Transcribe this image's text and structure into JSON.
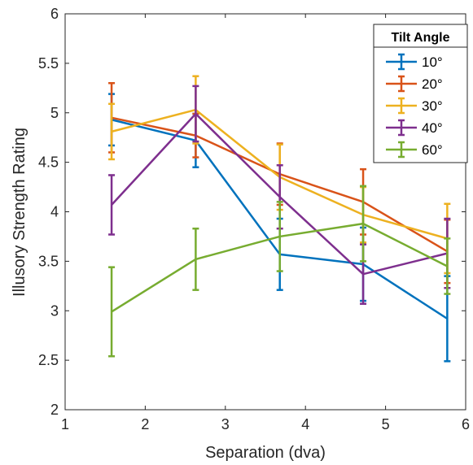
{
  "chart_data": {
    "type": "line",
    "xlabel": "Separation (dva)",
    "ylabel": "Illusory Strength Rating",
    "xlim": [
      1,
      6
    ],
    "ylim": [
      2,
      6
    ],
    "x_ticks": [
      "1",
      "2",
      "3",
      "4",
      "5",
      "6"
    ],
    "y_ticks": [
      "2",
      "2.5",
      "3",
      "3.5",
      "4",
      "4.5",
      "5",
      "5.5",
      "6"
    ],
    "legend": {
      "title": "Tilt Angle",
      "placement": "top-right"
    },
    "x": [
      1.58,
      2.63,
      3.68,
      4.72,
      5.77
    ],
    "series": [
      {
        "name": "10°",
        "color": "#0072BD",
        "values": [
          4.93,
          4.72,
          3.57,
          3.47,
          2.92
        ],
        "errors": [
          0.26,
          0.27,
          0.36,
          0.37,
          0.43
        ]
      },
      {
        "name": "20°",
        "color": "#D95319",
        "values": [
          4.95,
          4.77,
          4.38,
          4.1,
          3.6
        ],
        "errors": [
          0.35,
          0.22,
          0.31,
          0.33,
          0.32
        ]
      },
      {
        "name": "30°",
        "color": "#EDB120",
        "values": [
          4.81,
          5.03,
          4.35,
          3.97,
          3.73
        ],
        "errors": [
          0.28,
          0.34,
          0.33,
          0.28,
          0.35
        ]
      },
      {
        "name": "40°",
        "color": "#7E2F8E",
        "values": [
          4.07,
          4.99,
          4.15,
          3.37,
          3.58
        ],
        "errors": [
          0.3,
          0.28,
          0.32,
          0.3,
          0.35
        ]
      },
      {
        "name": "60°",
        "color": "#77AC30",
        "values": [
          2.99,
          3.52,
          3.75,
          3.88,
          3.45
        ],
        "errors": [
          0.45,
          0.31,
          0.35,
          0.38,
          0.28
        ]
      }
    ]
  }
}
